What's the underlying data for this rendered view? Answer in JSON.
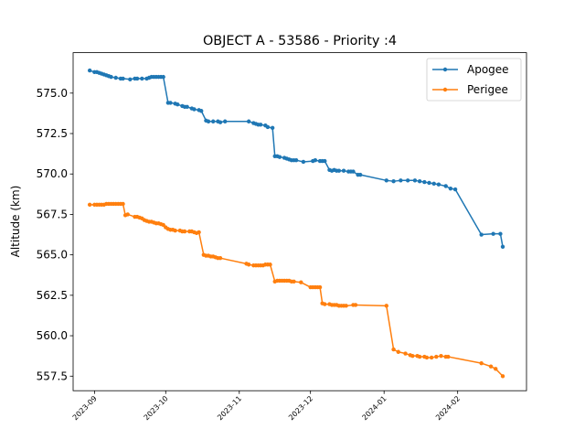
{
  "chart_data": {
    "type": "line",
    "title": "OBJECT A - 53586 - Priority :4",
    "xlabel": "",
    "ylabel": "Altitude (km)",
    "legend_position": "top-right",
    "grid": false,
    "x_axis_type": "date",
    "xlim": [
      "2023-08-23",
      "2024-03-01"
    ],
    "ylim": [
      556.6,
      577.5
    ],
    "yticks": [
      557.5,
      560.0,
      562.5,
      565.0,
      567.5,
      570.0,
      572.5,
      575.0
    ],
    "ytick_labels": [
      "557.5",
      "560.0",
      "562.5",
      "565.0",
      "567.5",
      "570.0",
      "572.5",
      "575.0"
    ],
    "xticks": [
      "2023-09-01",
      "2023-10-01",
      "2023-11-01",
      "2023-12-01",
      "2024-01-01",
      "2024-02-01"
    ],
    "xtick_labels": [
      "2023-09",
      "2023-10",
      "2023-11",
      "2023-12",
      "2024-01",
      "2024-02"
    ],
    "series": [
      {
        "name": "Apogee",
        "color": "#1f77b4",
        "points": [
          [
            "2023-08-30",
            576.4
          ],
          [
            "2023-09-01",
            576.3
          ],
          [
            "2023-09-02",
            576.3
          ],
          [
            "2023-09-03",
            576.25
          ],
          [
            "2023-09-04",
            576.2
          ],
          [
            "2023-09-05",
            576.15
          ],
          [
            "2023-09-06",
            576.1
          ],
          [
            "2023-09-07",
            576.05
          ],
          [
            "2023-09-08",
            576.0
          ],
          [
            "2023-09-10",
            575.95
          ],
          [
            "2023-09-12",
            575.9
          ],
          [
            "2023-09-13",
            575.9
          ],
          [
            "2023-09-16",
            575.85
          ],
          [
            "2023-09-18",
            575.9
          ],
          [
            "2023-09-19",
            575.9
          ],
          [
            "2023-09-21",
            575.9
          ],
          [
            "2023-09-23",
            575.9
          ],
          [
            "2023-09-24",
            575.95
          ],
          [
            "2023-09-25",
            576.0
          ],
          [
            "2023-09-26",
            576.0
          ],
          [
            "2023-09-27",
            576.0
          ],
          [
            "2023-09-28",
            576.0
          ],
          [
            "2023-09-29",
            576.0
          ],
          [
            "2023-09-30",
            576.0
          ],
          [
            "2023-10-02",
            574.4
          ],
          [
            "2023-10-03",
            574.4
          ],
          [
            "2023-10-05",
            574.35
          ],
          [
            "2023-10-06",
            574.3
          ],
          [
            "2023-10-08",
            574.2
          ],
          [
            "2023-10-09",
            574.15
          ],
          [
            "2023-10-10",
            574.15
          ],
          [
            "2023-10-12",
            574.05
          ],
          [
            "2023-10-13",
            574.0
          ],
          [
            "2023-10-15",
            573.95
          ],
          [
            "2023-10-16",
            573.9
          ],
          [
            "2023-10-18",
            573.3
          ],
          [
            "2023-10-19",
            573.25
          ],
          [
            "2023-10-21",
            573.25
          ],
          [
            "2023-10-23",
            573.25
          ],
          [
            "2023-10-24",
            573.2
          ],
          [
            "2023-10-26",
            573.25
          ],
          [
            "2023-11-05",
            573.25
          ],
          [
            "2023-11-07",
            573.15
          ],
          [
            "2023-11-08",
            573.1
          ],
          [
            "2023-11-09",
            573.05
          ],
          [
            "2023-11-10",
            573.05
          ],
          [
            "2023-11-12",
            573.0
          ],
          [
            "2023-11-13",
            572.9
          ],
          [
            "2023-11-15",
            572.85
          ],
          [
            "2023-11-16",
            571.1
          ],
          [
            "2023-11-17",
            571.1
          ],
          [
            "2023-11-18",
            571.05
          ],
          [
            "2023-11-20",
            571.0
          ],
          [
            "2023-11-21",
            570.95
          ],
          [
            "2023-11-22",
            570.9
          ],
          [
            "2023-11-23",
            570.85
          ],
          [
            "2023-11-24",
            570.85
          ],
          [
            "2023-11-25",
            570.85
          ],
          [
            "2023-11-28",
            570.75
          ],
          [
            "2023-12-02",
            570.8
          ],
          [
            "2023-12-03",
            570.85
          ],
          [
            "2023-12-05",
            570.8
          ],
          [
            "2023-12-06",
            570.8
          ],
          [
            "2023-12-07",
            570.8
          ],
          [
            "2023-12-09",
            570.25
          ],
          [
            "2023-12-10",
            570.2
          ],
          [
            "2023-12-11",
            570.25
          ],
          [
            "2023-12-12",
            570.2
          ],
          [
            "2023-12-13",
            570.2
          ],
          [
            "2023-12-15",
            570.2
          ],
          [
            "2023-12-17",
            570.15
          ],
          [
            "2023-12-18",
            570.15
          ],
          [
            "2023-12-19",
            570.15
          ],
          [
            "2023-12-21",
            569.95
          ],
          [
            "2023-12-22",
            569.95
          ],
          [
            "2024-01-02",
            569.6
          ],
          [
            "2024-01-05",
            569.55
          ],
          [
            "2024-01-08",
            569.6
          ],
          [
            "2024-01-11",
            569.6
          ],
          [
            "2024-01-14",
            569.6
          ],
          [
            "2024-01-16",
            569.55
          ],
          [
            "2024-01-18",
            569.5
          ],
          [
            "2024-01-20",
            569.45
          ],
          [
            "2024-01-22",
            569.4
          ],
          [
            "2024-01-24",
            569.35
          ],
          [
            "2024-01-27",
            569.25
          ],
          [
            "2024-01-29",
            569.1
          ],
          [
            "2024-01-31",
            569.05
          ],
          [
            "2024-02-11",
            566.25
          ],
          [
            "2024-02-16",
            566.3
          ],
          [
            "2024-02-19",
            566.3
          ],
          [
            "2024-02-20",
            565.5
          ]
        ]
      },
      {
        "name": "Perigee",
        "color": "#ff7f0e",
        "points": [
          [
            "2023-08-30",
            568.1
          ],
          [
            "2023-09-01",
            568.1
          ],
          [
            "2023-09-02",
            568.1
          ],
          [
            "2023-09-03",
            568.1
          ],
          [
            "2023-09-04",
            568.1
          ],
          [
            "2023-09-05",
            568.1
          ],
          [
            "2023-09-06",
            568.15
          ],
          [
            "2023-09-07",
            568.15
          ],
          [
            "2023-09-08",
            568.15
          ],
          [
            "2023-09-09",
            568.15
          ],
          [
            "2023-09-10",
            568.15
          ],
          [
            "2023-09-11",
            568.15
          ],
          [
            "2023-09-12",
            568.15
          ],
          [
            "2023-09-13",
            568.15
          ],
          [
            "2023-09-14",
            567.45
          ],
          [
            "2023-09-15",
            567.5
          ],
          [
            "2023-09-18",
            567.35
          ],
          [
            "2023-09-19",
            567.35
          ],
          [
            "2023-09-20",
            567.3
          ],
          [
            "2023-09-21",
            567.25
          ],
          [
            "2023-09-22",
            567.15
          ],
          [
            "2023-09-23",
            567.1
          ],
          [
            "2023-09-24",
            567.05
          ],
          [
            "2023-09-25",
            567.05
          ],
          [
            "2023-09-26",
            567.0
          ],
          [
            "2023-09-27",
            566.95
          ],
          [
            "2023-09-28",
            566.95
          ],
          [
            "2023-09-29",
            566.9
          ],
          [
            "2023-09-30",
            566.85
          ],
          [
            "2023-10-01",
            566.7
          ],
          [
            "2023-10-02",
            566.6
          ],
          [
            "2023-10-03",
            566.55
          ],
          [
            "2023-10-04",
            566.55
          ],
          [
            "2023-10-05",
            566.5
          ],
          [
            "2023-10-07",
            566.5
          ],
          [
            "2023-10-08",
            566.45
          ],
          [
            "2023-10-09",
            566.45
          ],
          [
            "2023-10-11",
            566.45
          ],
          [
            "2023-10-12",
            566.45
          ],
          [
            "2023-10-13",
            566.4
          ],
          [
            "2023-10-14",
            566.35
          ],
          [
            "2023-10-15",
            566.4
          ],
          [
            "2023-10-17",
            565.0
          ],
          [
            "2023-10-18",
            564.95
          ],
          [
            "2023-10-19",
            564.95
          ],
          [
            "2023-10-20",
            564.9
          ],
          [
            "2023-10-21",
            564.9
          ],
          [
            "2023-10-22",
            564.85
          ],
          [
            "2023-10-23",
            564.8
          ],
          [
            "2023-10-24",
            564.8
          ],
          [
            "2023-11-04",
            564.45
          ],
          [
            "2023-11-05",
            564.4
          ],
          [
            "2023-11-07",
            564.35
          ],
          [
            "2023-11-08",
            564.35
          ],
          [
            "2023-11-09",
            564.35
          ],
          [
            "2023-11-10",
            564.35
          ],
          [
            "2023-11-11",
            564.35
          ],
          [
            "2023-11-12",
            564.4
          ],
          [
            "2023-11-13",
            564.4
          ],
          [
            "2023-11-14",
            564.4
          ],
          [
            "2023-11-16",
            563.35
          ],
          [
            "2023-11-17",
            563.4
          ],
          [
            "2023-11-18",
            563.4
          ],
          [
            "2023-11-19",
            563.4
          ],
          [
            "2023-11-20",
            563.4
          ],
          [
            "2023-11-21",
            563.4
          ],
          [
            "2023-11-22",
            563.4
          ],
          [
            "2023-11-23",
            563.35
          ],
          [
            "2023-11-24",
            563.35
          ],
          [
            "2023-11-27",
            563.3
          ],
          [
            "2023-12-01",
            563.0
          ],
          [
            "2023-12-02",
            563.0
          ],
          [
            "2023-12-03",
            563.0
          ],
          [
            "2023-12-04",
            563.0
          ],
          [
            "2023-12-05",
            563.0
          ],
          [
            "2023-12-06",
            562.0
          ],
          [
            "2023-12-07",
            561.95
          ],
          [
            "2023-12-09",
            561.95
          ],
          [
            "2023-12-10",
            561.9
          ],
          [
            "2023-12-11",
            561.9
          ],
          [
            "2023-12-12",
            561.9
          ],
          [
            "2023-12-13",
            561.85
          ],
          [
            "2023-12-14",
            561.85
          ],
          [
            "2023-12-15",
            561.85
          ],
          [
            "2023-12-16",
            561.85
          ],
          [
            "2023-12-19",
            561.9
          ],
          [
            "2023-12-20",
            561.9
          ],
          [
            "2024-01-02",
            561.85
          ],
          [
            "2024-01-05",
            559.15
          ],
          [
            "2024-01-07",
            559.0
          ],
          [
            "2024-01-10",
            558.9
          ],
          [
            "2024-01-12",
            558.8
          ],
          [
            "2024-01-13",
            558.75
          ],
          [
            "2024-01-15",
            558.75
          ],
          [
            "2024-01-16",
            558.7
          ],
          [
            "2024-01-18",
            558.7
          ],
          [
            "2024-01-19",
            558.65
          ],
          [
            "2024-01-21",
            558.65
          ],
          [
            "2024-01-23",
            558.7
          ],
          [
            "2024-01-25",
            558.75
          ],
          [
            "2024-01-27",
            558.7
          ],
          [
            "2024-01-28",
            558.7
          ],
          [
            "2024-02-11",
            558.3
          ],
          [
            "2024-02-15",
            558.1
          ],
          [
            "2024-02-17",
            557.95
          ],
          [
            "2024-02-20",
            557.5
          ]
        ]
      }
    ]
  }
}
